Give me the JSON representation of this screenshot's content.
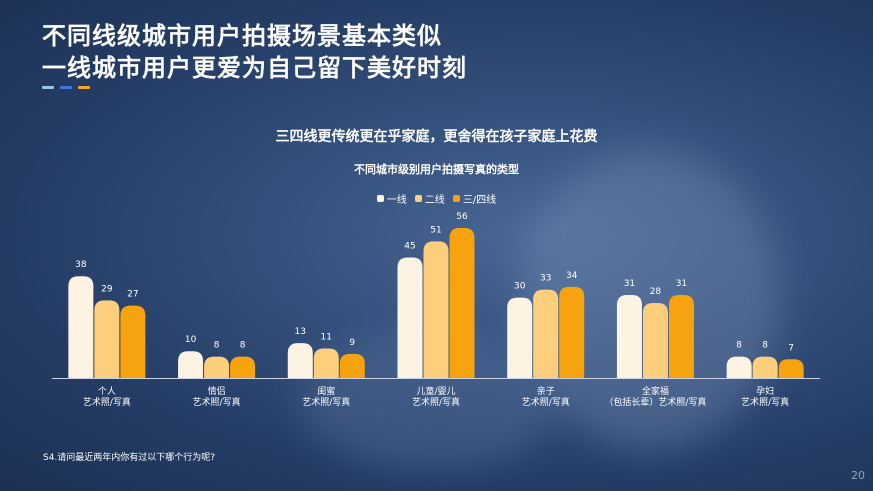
{
  "slide": {
    "title_line1": "不同线级城市用户拍摄场景基本类似",
    "title_line2": "一线城市用户更爱为自己留下美好时刻",
    "subtitle": "三四线更传统更在乎家庭，更舍得在孩子家庭上花费",
    "footnote": "S4.请问最近两年内你有过以下哪个行为呢?",
    "page_number": "20",
    "accent_colors": [
      "#9fc3ef",
      "#3b7ae0",
      "#f5a623"
    ]
  },
  "chart_data": {
    "type": "bar",
    "title": "不同城市级别用户拍摄写真的类型",
    "categories": [
      [
        "个人",
        "艺术照/写真"
      ],
      [
        "情侣",
        "艺术照/写真"
      ],
      [
        "闺蜜",
        "艺术照/写真"
      ],
      [
        "儿童/婴儿",
        "艺术照/写真"
      ],
      [
        "亲子",
        "艺术照/写真"
      ],
      [
        "全家福",
        "（包括长辈）艺术照/写真"
      ],
      [
        "孕妇",
        "艺术照/写真"
      ]
    ],
    "series": [
      {
        "name": "一线",
        "color": "#fdf3e3",
        "values": [
          38,
          10,
          13,
          45,
          30,
          31,
          8
        ]
      },
      {
        "name": "二线",
        "color": "#fdcf7c",
        "values": [
          29,
          8,
          11,
          51,
          33,
          28,
          8
        ]
      },
      {
        "name": "三/四线",
        "color": "#f7a20f",
        "values": [
          27,
          8,
          9,
          56,
          34,
          31,
          7
        ]
      }
    ],
    "ylim": [
      0,
      56
    ],
    "xlabel": "",
    "ylabel": "",
    "legend_position": "top-center",
    "grid": false
  }
}
